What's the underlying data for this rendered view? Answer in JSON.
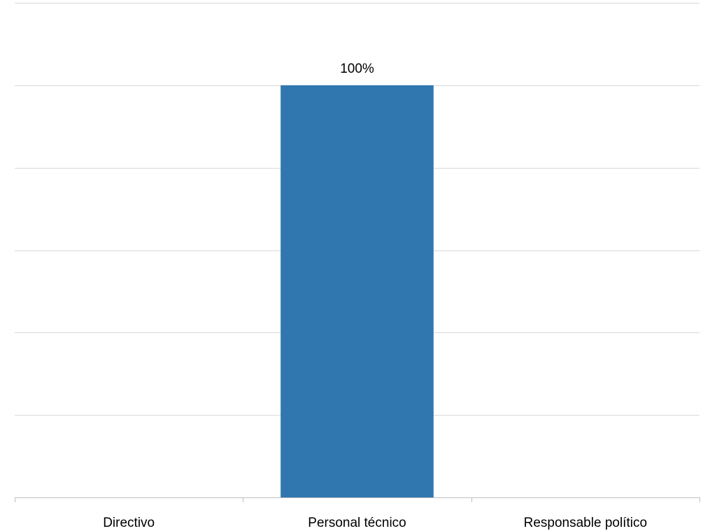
{
  "chart_data": {
    "type": "bar",
    "categories": [
      "Directivo",
      "Personal técnico",
      "Responsable político"
    ],
    "values": [
      0,
      100,
      0
    ],
    "data_labels": [
      "",
      "100%",
      ""
    ],
    "ylim": [
      0,
      120
    ],
    "y_gridline_step": 20,
    "grid": true,
    "legend": "none",
    "bar_color": "#3077b0"
  }
}
